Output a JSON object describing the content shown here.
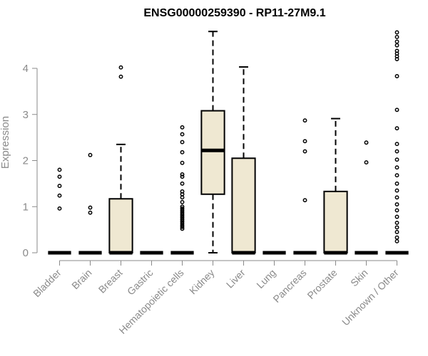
{
  "chart_data": {
    "type": "boxplot",
    "title": "ENSG00000259390 - RP11-27M9.1",
    "xlabel": "",
    "ylabel": "Expression",
    "ylim": [
      0,
      4.85
    ],
    "yticks": [
      0,
      1,
      2,
      3,
      4
    ],
    "grid": false,
    "box_color": "#efe8d2",
    "categories": [
      "Bladder",
      "Brain",
      "Breast",
      "Gastric",
      "Hematopoietic cells",
      "Kidney",
      "Liver",
      "Lung",
      "Pancreas",
      "Prostate",
      "Skin",
      "Unknown / Other"
    ],
    "boxes": [
      {
        "q1": 0,
        "median": 0,
        "q3": 0,
        "whisker_low": 0,
        "whisker_high": 0,
        "outliers": [
          0.96,
          1.24,
          1.45,
          1.65,
          1.8
        ]
      },
      {
        "q1": 0,
        "median": 0,
        "q3": 0,
        "whisker_low": 0,
        "whisker_high": 0,
        "outliers": [
          0.87,
          0.98,
          2.12
        ]
      },
      {
        "q1": 0,
        "median": 0,
        "q3": 1.17,
        "whisker_low": 0,
        "whisker_high": 2.35,
        "outliers": [
          3.82,
          4.02
        ]
      },
      {
        "q1": 0,
        "median": 0,
        "q3": 0,
        "whisker_low": 0,
        "whisker_high": 0,
        "outliers": []
      },
      {
        "q1": 0,
        "median": 0,
        "q3": 0,
        "whisker_low": 0,
        "whisker_high": 0,
        "outliers": [
          0.52,
          0.56,
          0.6,
          0.64,
          0.68,
          0.72,
          0.76,
          0.8,
          0.84,
          0.88,
          0.92,
          0.96,
          1.0,
          1.1,
          1.2,
          1.27,
          1.33,
          1.5,
          1.65,
          1.7,
          1.95,
          2.18,
          2.4,
          2.57,
          2.72
        ]
      },
      {
        "q1": 1.27,
        "median": 2.22,
        "q3": 3.08,
        "whisker_low": 0,
        "whisker_high": 4.8,
        "outliers": []
      },
      {
        "q1": 0,
        "median": 0,
        "q3": 2.05,
        "whisker_low": 0,
        "whisker_high": 4.03,
        "outliers": []
      },
      {
        "q1": 0,
        "median": 0,
        "q3": 0,
        "whisker_low": 0,
        "whisker_high": 0,
        "outliers": []
      },
      {
        "q1": 0,
        "median": 0,
        "q3": 0,
        "whisker_low": 0,
        "whisker_high": 0,
        "outliers": [
          1.14,
          2.2,
          2.42,
          2.87
        ]
      },
      {
        "q1": 0,
        "median": 0,
        "q3": 1.33,
        "whisker_low": 0,
        "whisker_high": 2.91,
        "outliers": []
      },
      {
        "q1": 0,
        "median": 0,
        "q3": 0,
        "whisker_low": 0,
        "whisker_high": 0,
        "outliers": [
          1.96,
          2.39
        ]
      },
      {
        "q1": 0,
        "median": 0,
        "q3": 0,
        "whisker_low": 0,
        "whisker_high": 0,
        "outliers": [
          0.25,
          0.33,
          0.45,
          0.55,
          0.65,
          0.78,
          0.92,
          1.05,
          1.2,
          1.35,
          1.5,
          1.68,
          1.85,
          2.02,
          2.2,
          2.36,
          2.7,
          3.1,
          3.83,
          4.2,
          4.26,
          4.32,
          4.38,
          4.5,
          4.58,
          4.68,
          4.78
        ]
      }
    ]
  }
}
